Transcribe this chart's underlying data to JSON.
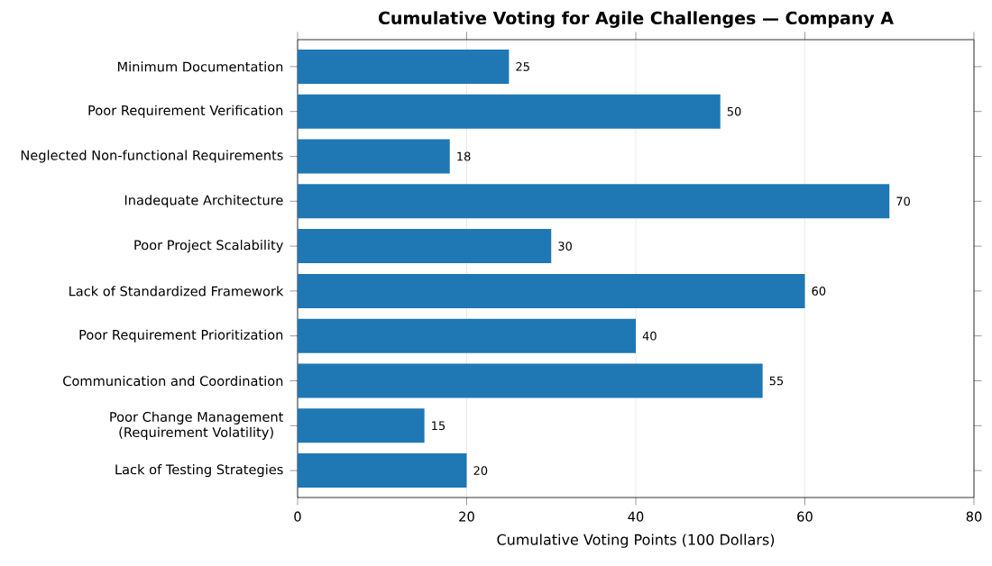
{
  "chart_data": {
    "type": "bar",
    "orientation": "horizontal",
    "title": "Cumulative Voting for Agile Challenges — Company A",
    "xlabel": "Cumulative Voting Points (100 Dollars)",
    "categories": [
      "Minimum Documentation",
      "Poor Requirement Verification",
      "Neglected Non-functional Requirements",
      "Inadequate Architecture",
      "Poor Project Scalability",
      "Lack of Standardized Framework",
      "Poor Requirement Prioritization",
      "Communication and Coordination",
      "Poor Change Management (Requirement Volatility)",
      "Lack of Testing Strategies"
    ],
    "values": [
      25,
      50,
      18,
      70,
      30,
      60,
      40,
      55,
      15,
      20
    ],
    "color": "#1f77b4",
    "xlim": [
      0,
      80
    ],
    "xticks": [
      0,
      20,
      40,
      60,
      80
    ],
    "grid": "x",
    "data_labels": true
  }
}
